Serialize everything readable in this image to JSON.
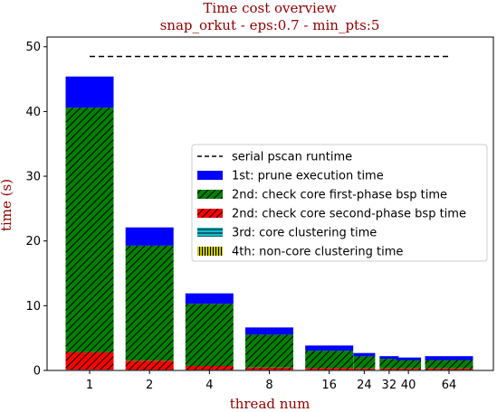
{
  "chart_data": {
    "type": "bar",
    "title": "Time cost overview",
    "subtitle": "snap_orkut - eps:0.7 - min_pts:5",
    "xlabel": "thread num",
    "ylabel": "time (s)",
    "ylim": [
      0,
      51.5
    ],
    "yticks": [
      0,
      10,
      20,
      30,
      40,
      50
    ],
    "categories": [
      "1",
      "2",
      "4",
      "8",
      "16",
      "24",
      "32",
      "40",
      "64"
    ],
    "x": [
      1,
      2,
      4,
      8,
      16,
      24,
      32,
      40,
      64
    ],
    "x_scale": "log2",
    "stacked": true,
    "legend_position": "center-right",
    "serial_runtime": {
      "name": "serial pscan runtime",
      "value": 48.5,
      "style": "dashed",
      "color": "#000000"
    },
    "series": [
      {
        "name": "4th: non-core clustering time",
        "color": "#c8c800",
        "hatch": "vertical",
        "values": [
          0.05,
          0.05,
          0.05,
          0.05,
          0.05,
          0.05,
          0.05,
          0.05,
          0.05
        ]
      },
      {
        "name": "3rd: core clustering time",
        "color": "#17becf",
        "hatch": "horizontal",
        "values": [
          0.05,
          0.05,
          0.05,
          0.05,
          0.05,
          0.05,
          0.05,
          0.05,
          0.05
        ]
      },
      {
        "name": "2nd: check core second-phase bsp time",
        "color": "#ff0000",
        "hatch": "diagonal",
        "values": [
          2.7,
          1.4,
          0.6,
          0.35,
          0.25,
          0.2,
          0.2,
          0.2,
          0.2
        ]
      },
      {
        "name": "2nd: check core first-phase bsp time",
        "color": "#007f00",
        "hatch": "diagonal",
        "values": [
          37.8,
          17.8,
          9.6,
          5.1,
          2.7,
          1.9,
          1.5,
          1.3,
          1.3
        ]
      },
      {
        "name": "1st: prune execution time",
        "color": "#0000ff",
        "hatch": "none",
        "values": [
          4.8,
          2.8,
          1.6,
          1.1,
          0.8,
          0.5,
          0.4,
          0.4,
          0.6
        ]
      }
    ],
    "legend_order": [
      "serial pscan runtime",
      "1st: prune execution time",
      "2nd: check core first-phase bsp time",
      "2nd: check core second-phase bsp time",
      "3rd: core clustering time",
      "4th: non-core clustering time"
    ],
    "colors": {
      "title": "#8b0000",
      "axis_label": "#8b0000"
    }
  }
}
